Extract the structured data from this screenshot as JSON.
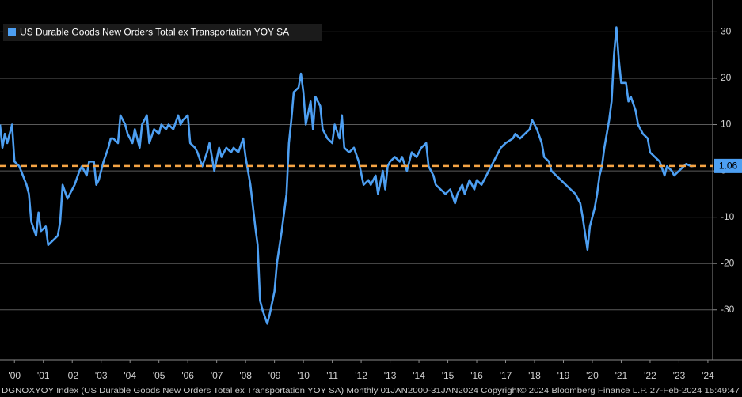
{
  "chart_data": {
    "type": "line",
    "series": [
      {
        "name": "US Durable Goods New Orders Total ex Transportation YOY SA",
        "color": "#4d9ff2",
        "values": [
          10,
          5,
          8,
          6,
          10,
          2,
          1,
          -3,
          -5,
          -11,
          -14,
          -9,
          -13,
          -12,
          -16,
          -15,
          -14,
          -11,
          -3,
          -6,
          -4,
          -3,
          0,
          1,
          -1,
          2,
          2,
          -3,
          -2,
          2,
          5,
          7,
          7,
          6,
          12,
          10,
          8,
          6,
          9,
          5,
          10,
          12,
          6,
          9,
          8,
          10,
          9,
          10,
          9,
          12,
          10,
          11,
          12,
          6,
          5,
          4,
          1,
          4,
          6,
          0,
          5,
          3,
          5,
          4,
          5,
          4,
          7,
          3,
          -3,
          -12,
          -16,
          -28,
          -30,
          -33,
          -31,
          -26,
          -20,
          -13,
          -5,
          6,
          11,
          17,
          18,
          21,
          17,
          10,
          15,
          9,
          16,
          14,
          9,
          7,
          6,
          10,
          7,
          12,
          5,
          4,
          5,
          2,
          -3,
          -2,
          -3,
          -1,
          -5,
          0,
          -4,
          1,
          2,
          3,
          2,
          3,
          0,
          4,
          3,
          5,
          6,
          1,
          -1,
          -3,
          -4,
          -5,
          -4,
          -7,
          -5,
          -3,
          -5,
          -2,
          -4,
          -2,
          -3,
          -1,
          0,
          2,
          4,
          5,
          6,
          7,
          8,
          7,
          8,
          9,
          11,
          9,
          6,
          3,
          2,
          0,
          -1,
          -2,
          -3,
          -4,
          -5,
          -7,
          -10,
          -17,
          -12,
          -8,
          -5,
          -1,
          1,
          5,
          8,
          11,
          15,
          25,
          31,
          24,
          19,
          19,
          15,
          16,
          13,
          10,
          8,
          7,
          4,
          3,
          2,
          -1,
          1,
          0,
          -1,
          0,
          1,
          1.5,
          1,
          1.06
        ]
      }
    ],
    "x": [
      "2000-01",
      "2000-02",
      "2000-03",
      "2000-04",
      "2000-06",
      "2000-07",
      "2000-09",
      "2000-12",
      "2001-01",
      "2001-02",
      "2001-04",
      "2001-05",
      "2001-06",
      "2001-08",
      "2001-09",
      "2001-11",
      "2002-01",
      "2002-02",
      "2002-03",
      "2002-05",
      "2002-07",
      "2002-08",
      "2002-10",
      "2002-11",
      "2003-01",
      "2003-02",
      "2003-04",
      "2003-05",
      "2003-06",
      "2003-08",
      "2003-10",
      "2003-11",
      "2003-12",
      "2004-02",
      "2004-03",
      "2004-05",
      "2004-06",
      "2004-08",
      "2004-09",
      "2004-11",
      "2004-12",
      "2005-02",
      "2005-03",
      "2005-05",
      "2005-07",
      "2005-08",
      "2005-10",
      "2005-11",
      "2006-01",
      "2006-03",
      "2006-04",
      "2006-05",
      "2006-07",
      "2006-08",
      "2006-10",
      "2006-11",
      "2007-01",
      "2007-03",
      "2007-04",
      "2007-06",
      "2007-08",
      "2007-09",
      "2007-11",
      "2008-01",
      "2008-02",
      "2008-04",
      "2008-06",
      "2008-07",
      "2008-09",
      "2008-11",
      "2008-12",
      "2009-01",
      "2009-02",
      "2009-04",
      "2009-05",
      "2009-07",
      "2009-08",
      "2009-10",
      "2009-12",
      "2010-01",
      "2010-02",
      "2010-03",
      "2010-05",
      "2010-06",
      "2010-07",
      "2010-08",
      "2010-10",
      "2010-11",
      "2010-12",
      "2011-02",
      "2011-03",
      "2011-05",
      "2011-07",
      "2011-08",
      "2011-10",
      "2011-11",
      "2011-12",
      "2012-02",
      "2012-04",
      "2012-06",
      "2012-08",
      "2012-10",
      "2012-11",
      "2013-01",
      "2013-02",
      "2013-04",
      "2013-05",
      "2013-06",
      "2013-07",
      "2013-09",
      "2013-11",
      "2013-12",
      "2014-02",
      "2014-04",
      "2014-06",
      "2014-08",
      "2014-10",
      "2014-11",
      "2015-01",
      "2015-02",
      "2015-04",
      "2015-06",
      "2015-08",
      "2015-10",
      "2015-11",
      "2016-01",
      "2016-02",
      "2016-04",
      "2016-06",
      "2016-07",
      "2016-09",
      "2016-11",
      "2016-12",
      "2017-02",
      "2017-04",
      "2017-05",
      "2017-07",
      "2017-10",
      "2017-11",
      "2018-01",
      "2018-03",
      "2018-05",
      "2018-06",
      "2018-08",
      "2018-10",
      "2018-11",
      "2019-01",
      "2019-02",
      "2019-04",
      "2019-06",
      "2019-08",
      "2019-10",
      "2019-12",
      "2020-02",
      "2020-03",
      "2020-05",
      "2020-06",
      "2020-08",
      "2020-09",
      "2020-10",
      "2020-11",
      "2020-12",
      "2021-01",
      "2021-02",
      "2021-03",
      "2021-04",
      "2021-05",
      "2021-06",
      "2021-07",
      "2021-09",
      "2021-10",
      "2021-11",
      "2022-01",
      "2022-02",
      "2022-04",
      "2022-06",
      "2022-07",
      "2022-09",
      "2022-11",
      "2023-01",
      "2023-02",
      "2023-04",
      "2023-05",
      "2023-07",
      "2023-09",
      "2023-10",
      "2023-12",
      "2024-01"
    ],
    "xlim": [
      "2000-01",
      "2024-09"
    ],
    "xticks": [
      {
        "value": "2000-07",
        "label": "'00"
      },
      {
        "value": "2001-07",
        "label": "'01"
      },
      {
        "value": "2002-07",
        "label": "'02"
      },
      {
        "value": "2003-07",
        "label": "'03"
      },
      {
        "value": "2004-07",
        "label": "'04"
      },
      {
        "value": "2005-07",
        "label": "'05"
      },
      {
        "value": "2006-07",
        "label": "'06"
      },
      {
        "value": "2007-07",
        "label": "'07"
      },
      {
        "value": "2008-07",
        "label": "'08"
      },
      {
        "value": "2009-07",
        "label": "'09"
      },
      {
        "value": "2010-07",
        "label": "'10"
      },
      {
        "value": "2011-07",
        "label": "'11"
      },
      {
        "value": "2012-07",
        "label": "'12"
      },
      {
        "value": "2013-07",
        "label": "'13"
      },
      {
        "value": "2014-07",
        "label": "'14"
      },
      {
        "value": "2015-07",
        "label": "'15"
      },
      {
        "value": "2016-07",
        "label": "'16"
      },
      {
        "value": "2017-07",
        "label": "'17"
      },
      {
        "value": "2018-07",
        "label": "'18"
      },
      {
        "value": "2019-07",
        "label": "'19"
      },
      {
        "value": "2020-07",
        "label": "'20"
      },
      {
        "value": "2021-07",
        "label": "'21"
      },
      {
        "value": "2022-07",
        "label": "'22"
      },
      {
        "value": "2023-07",
        "label": "'23"
      },
      {
        "value": "2024-07",
        "label": "'24"
      }
    ],
    "ylim": [
      -40.8,
      36.9
    ],
    "yticks": [
      30,
      20,
      10,
      0,
      -10,
      -20,
      -30
    ],
    "grid": true,
    "legend": "upper left",
    "reference_line": {
      "value": 1.06,
      "color": "#f5a445",
      "label_color": "#4d9ff2"
    },
    "footer": "DGNOXYOY Index (US Durable Goods New Orders Total ex Transportation YOY SA)  Monthly 01JAN2000-31JAN2024  Copyright© 2024 Bloomberg Finance L.P.   27-Feb-2024 15:49:47"
  }
}
